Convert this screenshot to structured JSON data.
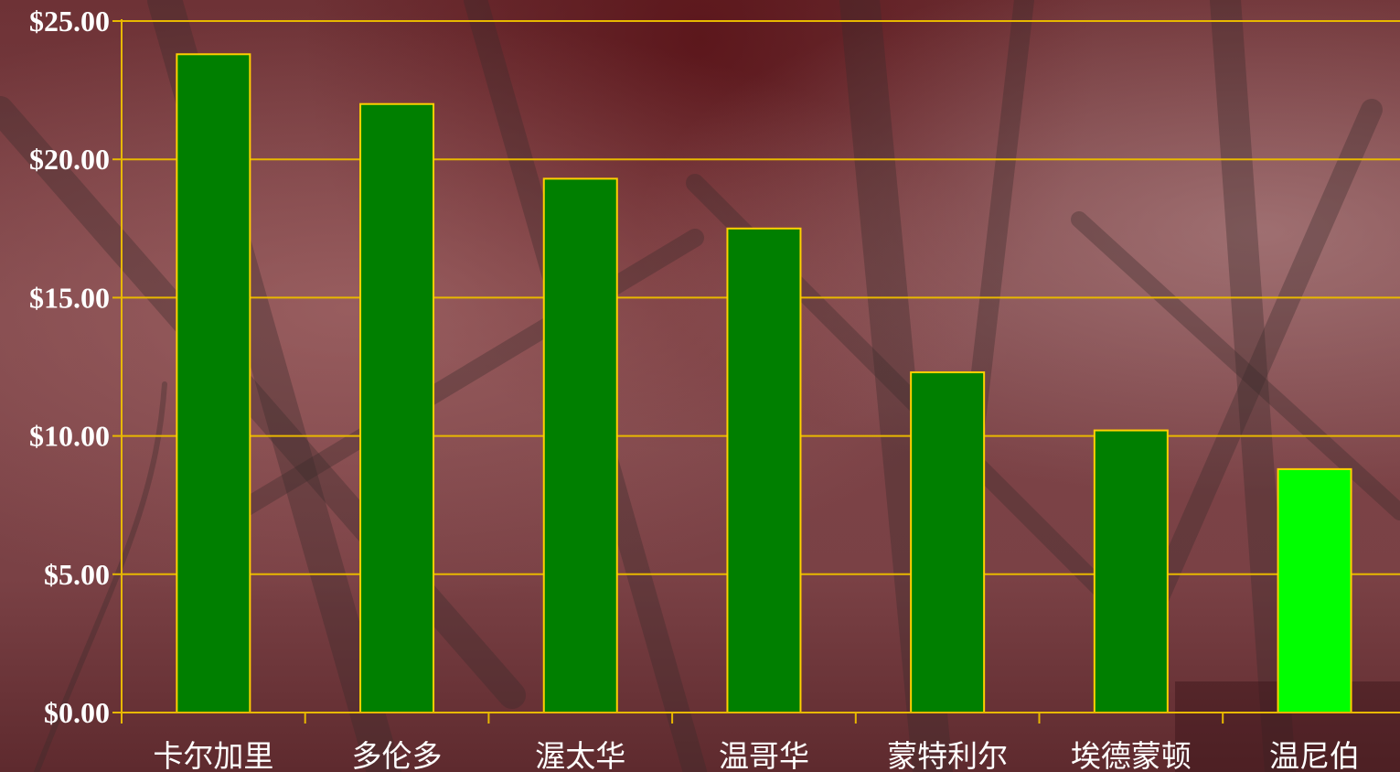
{
  "chart_data": {
    "type": "bar",
    "categories": [
      "卡尔加里",
      "多伦多",
      "渥太华",
      "温哥华",
      "蒙特利尔",
      "埃德蒙顿",
      "温尼伯"
    ],
    "values": [
      23.8,
      22.0,
      19.3,
      17.5,
      12.3,
      10.2,
      8.8
    ],
    "yticks": [
      "$0.00",
      "$5.00",
      "$10.00",
      "$15.00",
      "$20.00",
      "$25.00"
    ],
    "ylim": [
      0,
      25
    ],
    "grid": true,
    "colors": {
      "bar": "#007f00",
      "highlight_bar": "#00ff00",
      "bar_stroke": "#ffd000",
      "grid": "#e8b800",
      "axis": "#e8b800",
      "text": "#ffffff"
    },
    "highlight_index": 6
  }
}
